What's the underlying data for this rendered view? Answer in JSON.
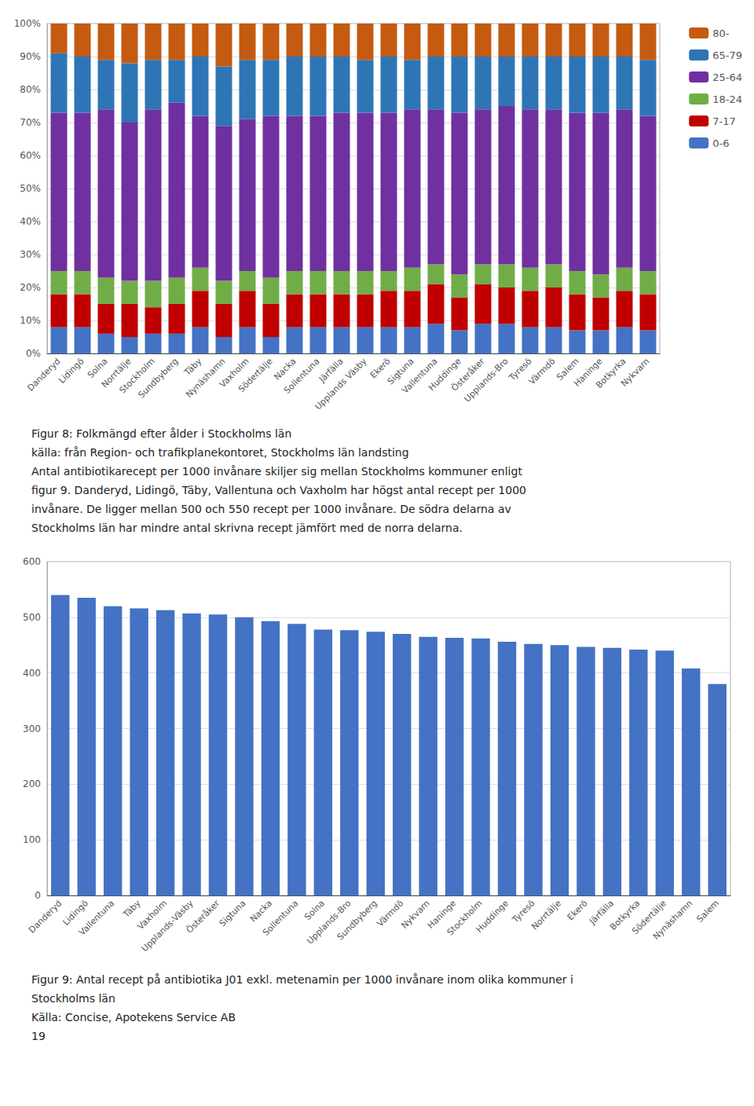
{
  "chart_data": [
    {
      "type": "bar",
      "stacked": true,
      "categories": [
        "Danderyd",
        "Lidingö",
        "Solna",
        "Norrtälje",
        "Stockholm",
        "Sundbyberg",
        "Täby",
        "Nynäshamn",
        "Vaxholm",
        "Södertälje",
        "Nacka",
        "Sollentuna",
        "Järfälla",
        "Upplands Väsby",
        "Ekerö",
        "Sigtuna",
        "Vallentuna",
        "Huddinge",
        "Österåker",
        "Upplands-Bro",
        "Tyresö",
        "Värmdö",
        "Salem",
        "Haninge",
        "Botkyrka",
        "Nykvarn"
      ],
      "series": [
        {
          "name": "0-6",
          "color": "#4472C4",
          "values": [
            8,
            8,
            6,
            5,
            6,
            6,
            8,
            5,
            8,
            5,
            8,
            8,
            8,
            8,
            8,
            8,
            9,
            7,
            9,
            9,
            8,
            8,
            7,
            7,
            8,
            7
          ]
        },
        {
          "name": "7-17",
          "color": "#C00000",
          "values": [
            10,
            10,
            9,
            10,
            8,
            9,
            11,
            10,
            11,
            10,
            10,
            10,
            10,
            10,
            11,
            11,
            12,
            10,
            12,
            11,
            11,
            12,
            11,
            10,
            11,
            11
          ]
        },
        {
          "name": "18-24",
          "color": "#70AD47",
          "values": [
            7,
            7,
            8,
            7,
            8,
            8,
            7,
            7,
            6,
            8,
            7,
            7,
            7,
            7,
            6,
            7,
            6,
            7,
            6,
            7,
            7,
            7,
            7,
            7,
            7,
            7
          ]
        },
        {
          "name": "25-64",
          "color": "#7030A0",
          "values": [
            48,
            48,
            51,
            48,
            52,
            53,
            46,
            47,
            46,
            49,
            47,
            47,
            48,
            48,
            48,
            48,
            47,
            49,
            47,
            48,
            48,
            47,
            48,
            49,
            48,
            47
          ]
        },
        {
          "name": "65-79",
          "color": "#2E75B6",
          "values": [
            18,
            17,
            15,
            18,
            15,
            13,
            18,
            18,
            18,
            17,
            18,
            18,
            17,
            16,
            17,
            15,
            16,
            17,
            16,
            15,
            16,
            16,
            17,
            17,
            16,
            17
          ]
        },
        {
          "name": "80-",
          "color": "#C55A11",
          "values": [
            9,
            10,
            11,
            12,
            11,
            11,
            10,
            13,
            11,
            11,
            10,
            10,
            10,
            11,
            10,
            11,
            10,
            10,
            10,
            10,
            10,
            10,
            10,
            10,
            10,
            11
          ]
        }
      ],
      "ylim": [
        0,
        100
      ],
      "yticks": [
        {
          "value": 0,
          "label": "0%"
        },
        {
          "value": 10,
          "label": "10%"
        },
        {
          "value": 20,
          "label": "20%"
        },
        {
          "value": 30,
          "label": "30%"
        },
        {
          "value": 40,
          "label": "40%"
        },
        {
          "value": 50,
          "label": "50%"
        },
        {
          "value": 60,
          "label": "60%"
        },
        {
          "value": 70,
          "label": "70%"
        },
        {
          "value": 80,
          "label": "80%"
        },
        {
          "value": 90,
          "label": "90%"
        },
        {
          "value": 100,
          "label": "100%"
        }
      ],
      "grid": true,
      "legend": "right",
      "annotations": [
        "Figur 8: Folkmängd efter ålder i Stockholms län",
        "källa: från Region- och trafikplanekontoret, Stockholms län landsting",
        "Antal antibiotikarecept per 1000 invånare skiljer sig mellan Stockholms kommuner enligt",
        "figur 9. Danderyd, Lidingö, Täby, Vallentuna och Vaxholm har högst antal recept per 1000",
        "invånare. De ligger mellan 500 och 550 recept per 1000 invånare. De södra delarna av",
        "Stockholms län har mindre antal skrivna recept jämfört med de norra delarna."
      ]
    },
    {
      "type": "bar",
      "categories": [
        "Danderyd",
        "Lidingö",
        "Vallentuna",
        "Täby",
        "Vaxholm",
        "Upplands-Väsby",
        "Österåker",
        "Sigtuna",
        "Nacka",
        "Sollentuna",
        "Solna",
        "Upplands-Bro",
        "Sundbyberg",
        "Värmdö",
        "Nykvarn",
        "Haninge",
        "Stockholm",
        "Huddinge",
        "Tyresö",
        "Norrtälje",
        "Ekerö",
        "Järfälla",
        "Botkyrka",
        "Södertälje",
        "Nynäshamn",
        "Salem"
      ],
      "values": [
        540,
        535,
        520,
        516,
        513,
        507,
        505,
        500,
        493,
        488,
        478,
        477,
        474,
        470,
        465,
        463,
        462,
        456,
        452,
        450,
        447,
        445,
        442,
        440,
        408,
        380
      ],
      "color": "#4472C4",
      "ylim": [
        0,
        600
      ],
      "yticks": [
        0,
        100,
        200,
        300,
        400,
        500,
        600
      ],
      "grid": true,
      "annotations": [
        "Figur 9: Antal recept på antibiotika J01 exkl. metenamin per 1000 invånare inom olika kommuner i",
        "Stockholms län",
        "Källa: Concise, Apotekens Service AB",
        "19"
      ]
    }
  ]
}
